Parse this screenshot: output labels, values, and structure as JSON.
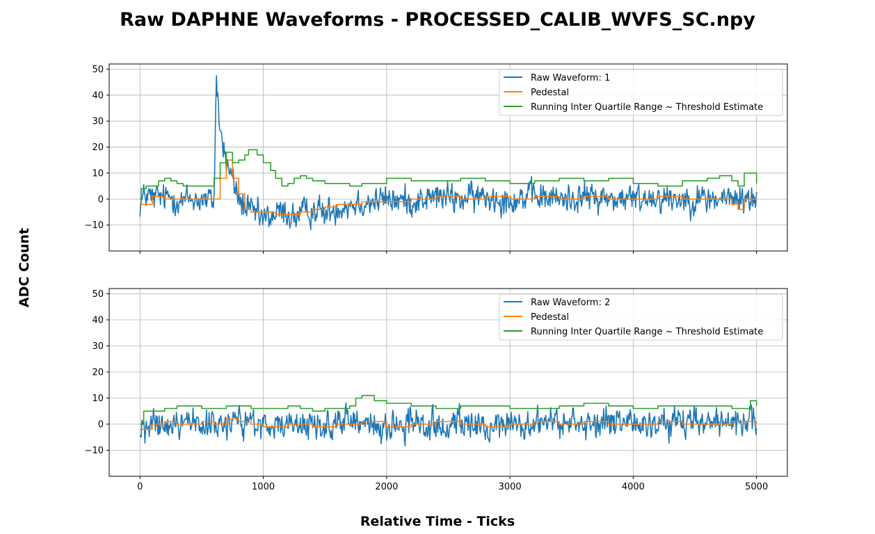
{
  "figure": {
    "title": "Raw DAPHNE Waveforms - PROCESSED_CALIB_WVFS_SC.npy",
    "xlabel": "Relative Time - Ticks",
    "ylabel": "ADC Count"
  },
  "chart_data": [
    {
      "type": "line",
      "xlim": [
        -250,
        5250
      ],
      "ylim": [
        -20,
        52
      ],
      "xticks": [
        0,
        1000,
        2000,
        3000,
        4000,
        5000
      ],
      "xtick_labels_visible": false,
      "yticks": [
        -10,
        0,
        10,
        20,
        30,
        40,
        50
      ],
      "ytick_labels": [
        "−10",
        "0",
        "10",
        "20",
        "30",
        "40",
        "50"
      ],
      "grid": true,
      "legend_position": "upper right",
      "series": [
        {
          "name": "Raw Waveform: 1",
          "color": "#1f77b4",
          "noise_amplitude": 4,
          "x": [
            0,
            50,
            100,
            150,
            200,
            250,
            300,
            350,
            400,
            450,
            500,
            550,
            600,
            610,
            620,
            630,
            640,
            660,
            700,
            750,
            800,
            850,
            900,
            950,
            1000,
            1050,
            1100,
            1150,
            1200,
            1250,
            1300,
            1350,
            1400,
            1450,
            1500,
            1600,
            1700,
            1800,
            1900,
            2000,
            2200,
            2400,
            2600,
            2800,
            3000,
            3200,
            3400,
            3600,
            3800,
            4000,
            4200,
            4400,
            4600,
            4800,
            5000
          ],
          "y": [
            -2,
            2,
            0,
            1,
            0,
            1,
            0,
            -1,
            0,
            0,
            0,
            -1,
            0,
            25,
            48,
            40,
            30,
            24,
            14,
            8,
            0,
            -3,
            -5,
            -6,
            -8,
            -7,
            -6,
            -5,
            -6,
            -7,
            -6,
            -5,
            -4,
            -4,
            -6,
            -3,
            -2,
            -1,
            -1,
            0,
            -1,
            1,
            0,
            1,
            0,
            1,
            0,
            1,
            0,
            0,
            1,
            0,
            0,
            0,
            0
          ]
        },
        {
          "name": "Pedestal",
          "color": "#ff7f0e",
          "x": [
            0,
            100,
            200,
            300,
            400,
            500,
            600,
            650,
            700,
            750,
            800,
            850,
            900,
            1000,
            1100,
            1200,
            1300,
            1400,
            1500,
            1600,
            1700,
            1800,
            1900,
            2000,
            2200,
            2400,
            2600,
            2800,
            3000,
            3200,
            3400,
            3600,
            3800,
            4000,
            4200,
            4400,
            4600,
            4800,
            4850,
            4900,
            5000
          ],
          "y": [
            -2,
            1,
            0,
            0,
            0,
            0,
            0,
            8,
            15,
            8,
            2,
            -4,
            -5,
            -5,
            -6,
            -6,
            -5,
            -4,
            -3,
            -2,
            -2,
            -1,
            -1,
            -1,
            0,
            1,
            0,
            1,
            0,
            1,
            0,
            1,
            0,
            0,
            1,
            0,
            0,
            -2,
            -4,
            0,
            0
          ]
        },
        {
          "name": "Running Inter Quartile Range ~ Threshold Estimate",
          "color": "#2ca02c",
          "x": [
            0,
            10,
            50,
            100,
            150,
            200,
            250,
            300,
            350,
            400,
            450,
            500,
            550,
            600,
            650,
            700,
            750,
            800,
            850,
            880,
            920,
            950,
            1000,
            1030,
            1060,
            1100,
            1150,
            1200,
            1250,
            1300,
            1350,
            1400,
            1500,
            1600,
            1700,
            1800,
            1900,
            2000,
            2100,
            2200,
            2400,
            2600,
            2800,
            3000,
            3200,
            3400,
            3600,
            3800,
            4000,
            4200,
            4400,
            4600,
            4700,
            4800,
            4850,
            4900,
            5000
          ],
          "y": [
            0,
            4,
            5,
            5,
            7,
            8,
            7,
            6,
            5,
            5,
            5,
            5,
            5,
            8,
            14,
            18,
            14,
            15,
            17,
            19,
            19,
            17,
            14,
            14,
            11,
            8,
            5,
            6,
            8,
            9,
            8,
            7,
            6,
            6,
            5,
            6,
            6,
            8,
            8,
            7,
            7,
            8,
            7,
            6,
            7,
            8,
            7,
            8,
            6,
            5,
            7,
            8,
            9,
            7,
            5,
            10,
            6
          ]
        }
      ]
    },
    {
      "type": "line",
      "xlim": [
        -250,
        5250
      ],
      "ylim": [
        -20,
        52
      ],
      "xticks": [
        0,
        1000,
        2000,
        3000,
        4000,
        5000
      ],
      "xtick_labels": [
        "0",
        "1000",
        "2000",
        "3000",
        "4000",
        "5000"
      ],
      "yticks": [
        -10,
        0,
        10,
        20,
        30,
        40,
        50
      ],
      "ytick_labels": [
        "−10",
        "0",
        "10",
        "20",
        "30",
        "40",
        "50"
      ],
      "grid": true,
      "legend_position": "upper right",
      "series": [
        {
          "name": "Raw Waveform: 2",
          "color": "#1f77b4",
          "noise_amplitude": 4,
          "x": [
            0,
            250,
            500,
            750,
            1000,
            1250,
            1500,
            1750,
            2000,
            2250,
            2500,
            2750,
            3000,
            3250,
            3500,
            3750,
            4000,
            4250,
            4500,
            4750,
            5000
          ],
          "y": [
            -2,
            0,
            0,
            1,
            -1,
            0,
            -1,
            1,
            -1,
            0,
            0,
            -1,
            0,
            1,
            0,
            1,
            0,
            0,
            1,
            0,
            0
          ]
        },
        {
          "name": "Pedestal",
          "color": "#ff7f0e",
          "x": [
            0,
            100,
            200,
            300,
            400,
            500,
            600,
            700,
            800,
            900,
            1000,
            1200,
            1400,
            1600,
            1800,
            2000,
            2200,
            2400,
            2600,
            2800,
            3000,
            3200,
            3400,
            3600,
            3800,
            4000,
            4200,
            4400,
            4600,
            4800,
            5000
          ],
          "y": [
            -2,
            0,
            1,
            0,
            0,
            1,
            0,
            2,
            1,
            0,
            -1,
            0,
            -1,
            0,
            1,
            -1,
            0,
            1,
            0,
            -1,
            0,
            1,
            0,
            1,
            0,
            0,
            1,
            0,
            0,
            1,
            0
          ]
        },
        {
          "name": "Running Inter Quartile Range ~ Threshold Estimate",
          "color": "#2ca02c",
          "x": [
            0,
            30,
            100,
            200,
            300,
            400,
            500,
            600,
            700,
            800,
            900,
            1000,
            1100,
            1200,
            1300,
            1400,
            1500,
            1600,
            1700,
            1750,
            1800,
            1900,
            2000,
            2200,
            2400,
            2600,
            2800,
            3000,
            3200,
            3400,
            3600,
            3800,
            4000,
            4200,
            4400,
            4600,
            4800,
            4900,
            4950,
            5000
          ],
          "y": [
            0,
            5,
            5,
            6,
            7,
            7,
            6,
            6,
            7,
            7,
            6,
            6,
            6,
            7,
            6,
            5,
            6,
            6,
            7,
            10,
            11,
            9,
            8,
            7,
            6,
            7,
            7,
            6,
            6,
            7,
            8,
            7,
            6,
            7,
            7,
            7,
            6,
            6,
            9,
            7
          ]
        }
      ]
    }
  ]
}
